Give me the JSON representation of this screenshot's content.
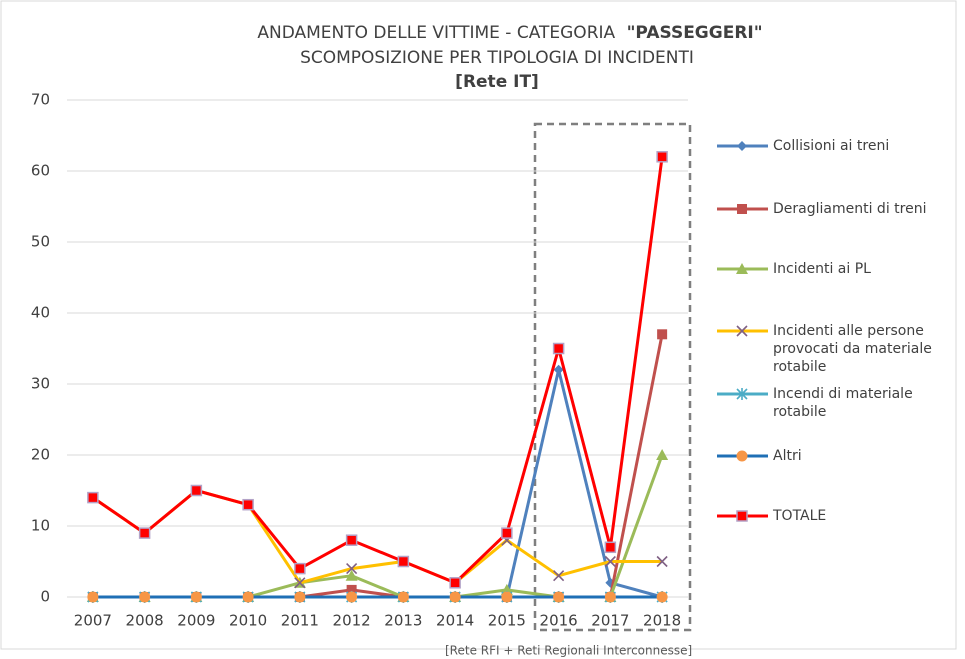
{
  "chart_data": {
    "type": "line",
    "title": "ANDAMENTO DELLE VITTIME - CATEGORIA",
    "title_emphasis": "\"PASSEGGERI\"",
    "subtitle": "SCOMPOSIZIONE PER TIPOLOGIA DI INCIDENTI",
    "subtitle_emphasis": "[Rete IT]",
    "annotation": "[Rete RFI + Reti Regionali Interconnesse]",
    "categories": [
      "2007",
      "2008",
      "2009",
      "2010",
      "2011",
      "2012",
      "2013",
      "2014",
      "2015",
      "2016",
      "2017",
      "2018"
    ],
    "ylim": [
      0,
      70
    ],
    "yticks": [
      0,
      10,
      20,
      30,
      40,
      50,
      60,
      70
    ],
    "grid": true,
    "legend": "right",
    "series": [
      {
        "name": "Collisioni ai treni",
        "color": "#4f81bd",
        "marker": "diamond",
        "marker_color": "#4f81bd",
        "values": [
          0,
          0,
          0,
          0,
          0,
          0,
          0,
          0,
          0,
          32,
          2,
          0
        ]
      },
      {
        "name": "Deragliamenti di treni",
        "color": "#c0504d",
        "marker": "square",
        "marker_color": "#c0504d",
        "values": [
          0,
          0,
          0,
          0,
          0,
          1,
          0,
          0,
          0,
          0,
          0,
          37
        ]
      },
      {
        "name": "Incidenti ai PL",
        "color": "#9bbb59",
        "marker": "triangle",
        "marker_color": "#9bbb59",
        "values": [
          0,
          0,
          0,
          0,
          2,
          3,
          0,
          0,
          1,
          0,
          0,
          20
        ]
      },
      {
        "name": "Incidenti alle persone provocati da materiale rotabile",
        "color": "#ffc000",
        "marker": "x",
        "marker_color": "#7f6084",
        "values": [
          14,
          9,
          15,
          13,
          2,
          4,
          5,
          2,
          8,
          3,
          5,
          5
        ]
      },
      {
        "name": "Incendi di materiale rotabile",
        "color": "#4bacc6",
        "marker": "star",
        "marker_color": "#4bacc6",
        "values": [
          0,
          0,
          0,
          0,
          0,
          0,
          0,
          0,
          0,
          0,
          0,
          0
        ]
      },
      {
        "name": "Altri",
        "color": "#1f6fb5",
        "marker": "circle",
        "marker_color": "#f79646",
        "values": [
          0,
          0,
          0,
          0,
          0,
          0,
          0,
          0,
          0,
          0,
          0,
          0
        ]
      },
      {
        "name": "TOTALE",
        "color": "#ff0000",
        "marker": "square",
        "marker_color": "#ff0000",
        "marker_stroke": "#b3a2c7",
        "values": [
          14,
          9,
          15,
          13,
          4,
          8,
          5,
          2,
          9,
          35,
          7,
          62
        ]
      }
    ]
  }
}
